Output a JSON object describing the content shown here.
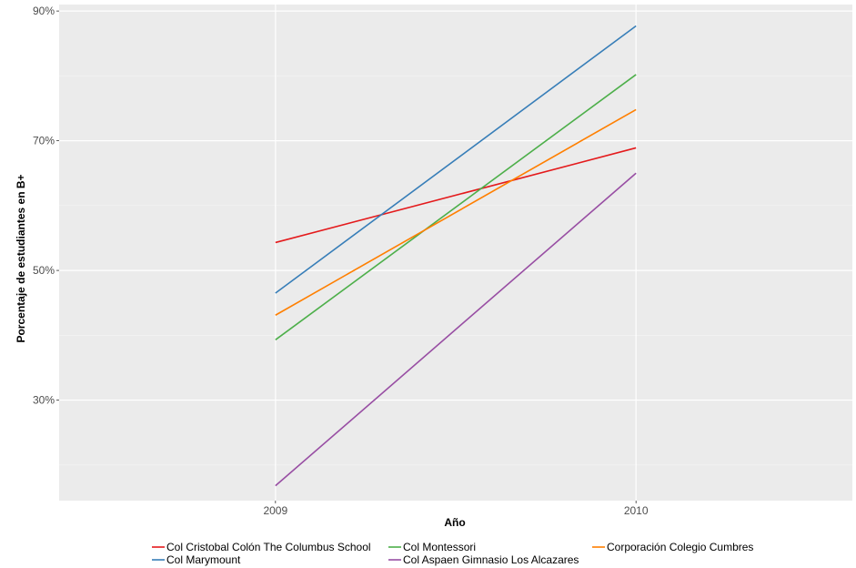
{
  "chart_data": {
    "type": "line",
    "xlabel": "Año",
    "ylabel": "Porcentaje de estudiantes en B+",
    "x": [
      2009,
      2010
    ],
    "x_tick_labels": [
      "2009",
      "2010"
    ],
    "xlim": [
      2008.4,
      2010.6
    ],
    "ylim": [
      14.5,
      91
    ],
    "y_ticks": [
      30,
      50,
      70,
      90
    ],
    "y_tick_labels": [
      "30%",
      "50%",
      "70%",
      "90%"
    ],
    "y_minor_ticks": [
      20,
      40,
      60,
      80
    ],
    "grid": true,
    "legend_position": "bottom",
    "series": [
      {
        "name": "Col Cristobal Colón The Columbus School",
        "color": "#e41a1c",
        "values": [
          54.3,
          68.9
        ]
      },
      {
        "name": "Col Marymount",
        "color": "#377eb8",
        "values": [
          46.5,
          87.7
        ]
      },
      {
        "name": "Col Montessori",
        "color": "#4daf4a",
        "values": [
          39.3,
          80.2
        ]
      },
      {
        "name": "Col Aspaen Gimnasio Los Alcazares",
        "color": "#984ea3",
        "values": [
          16.8,
          65.0
        ]
      },
      {
        "name": "Corporación Colegio Cumbres",
        "color": "#ff7f00",
        "values": [
          43.1,
          74.8
        ]
      }
    ]
  }
}
